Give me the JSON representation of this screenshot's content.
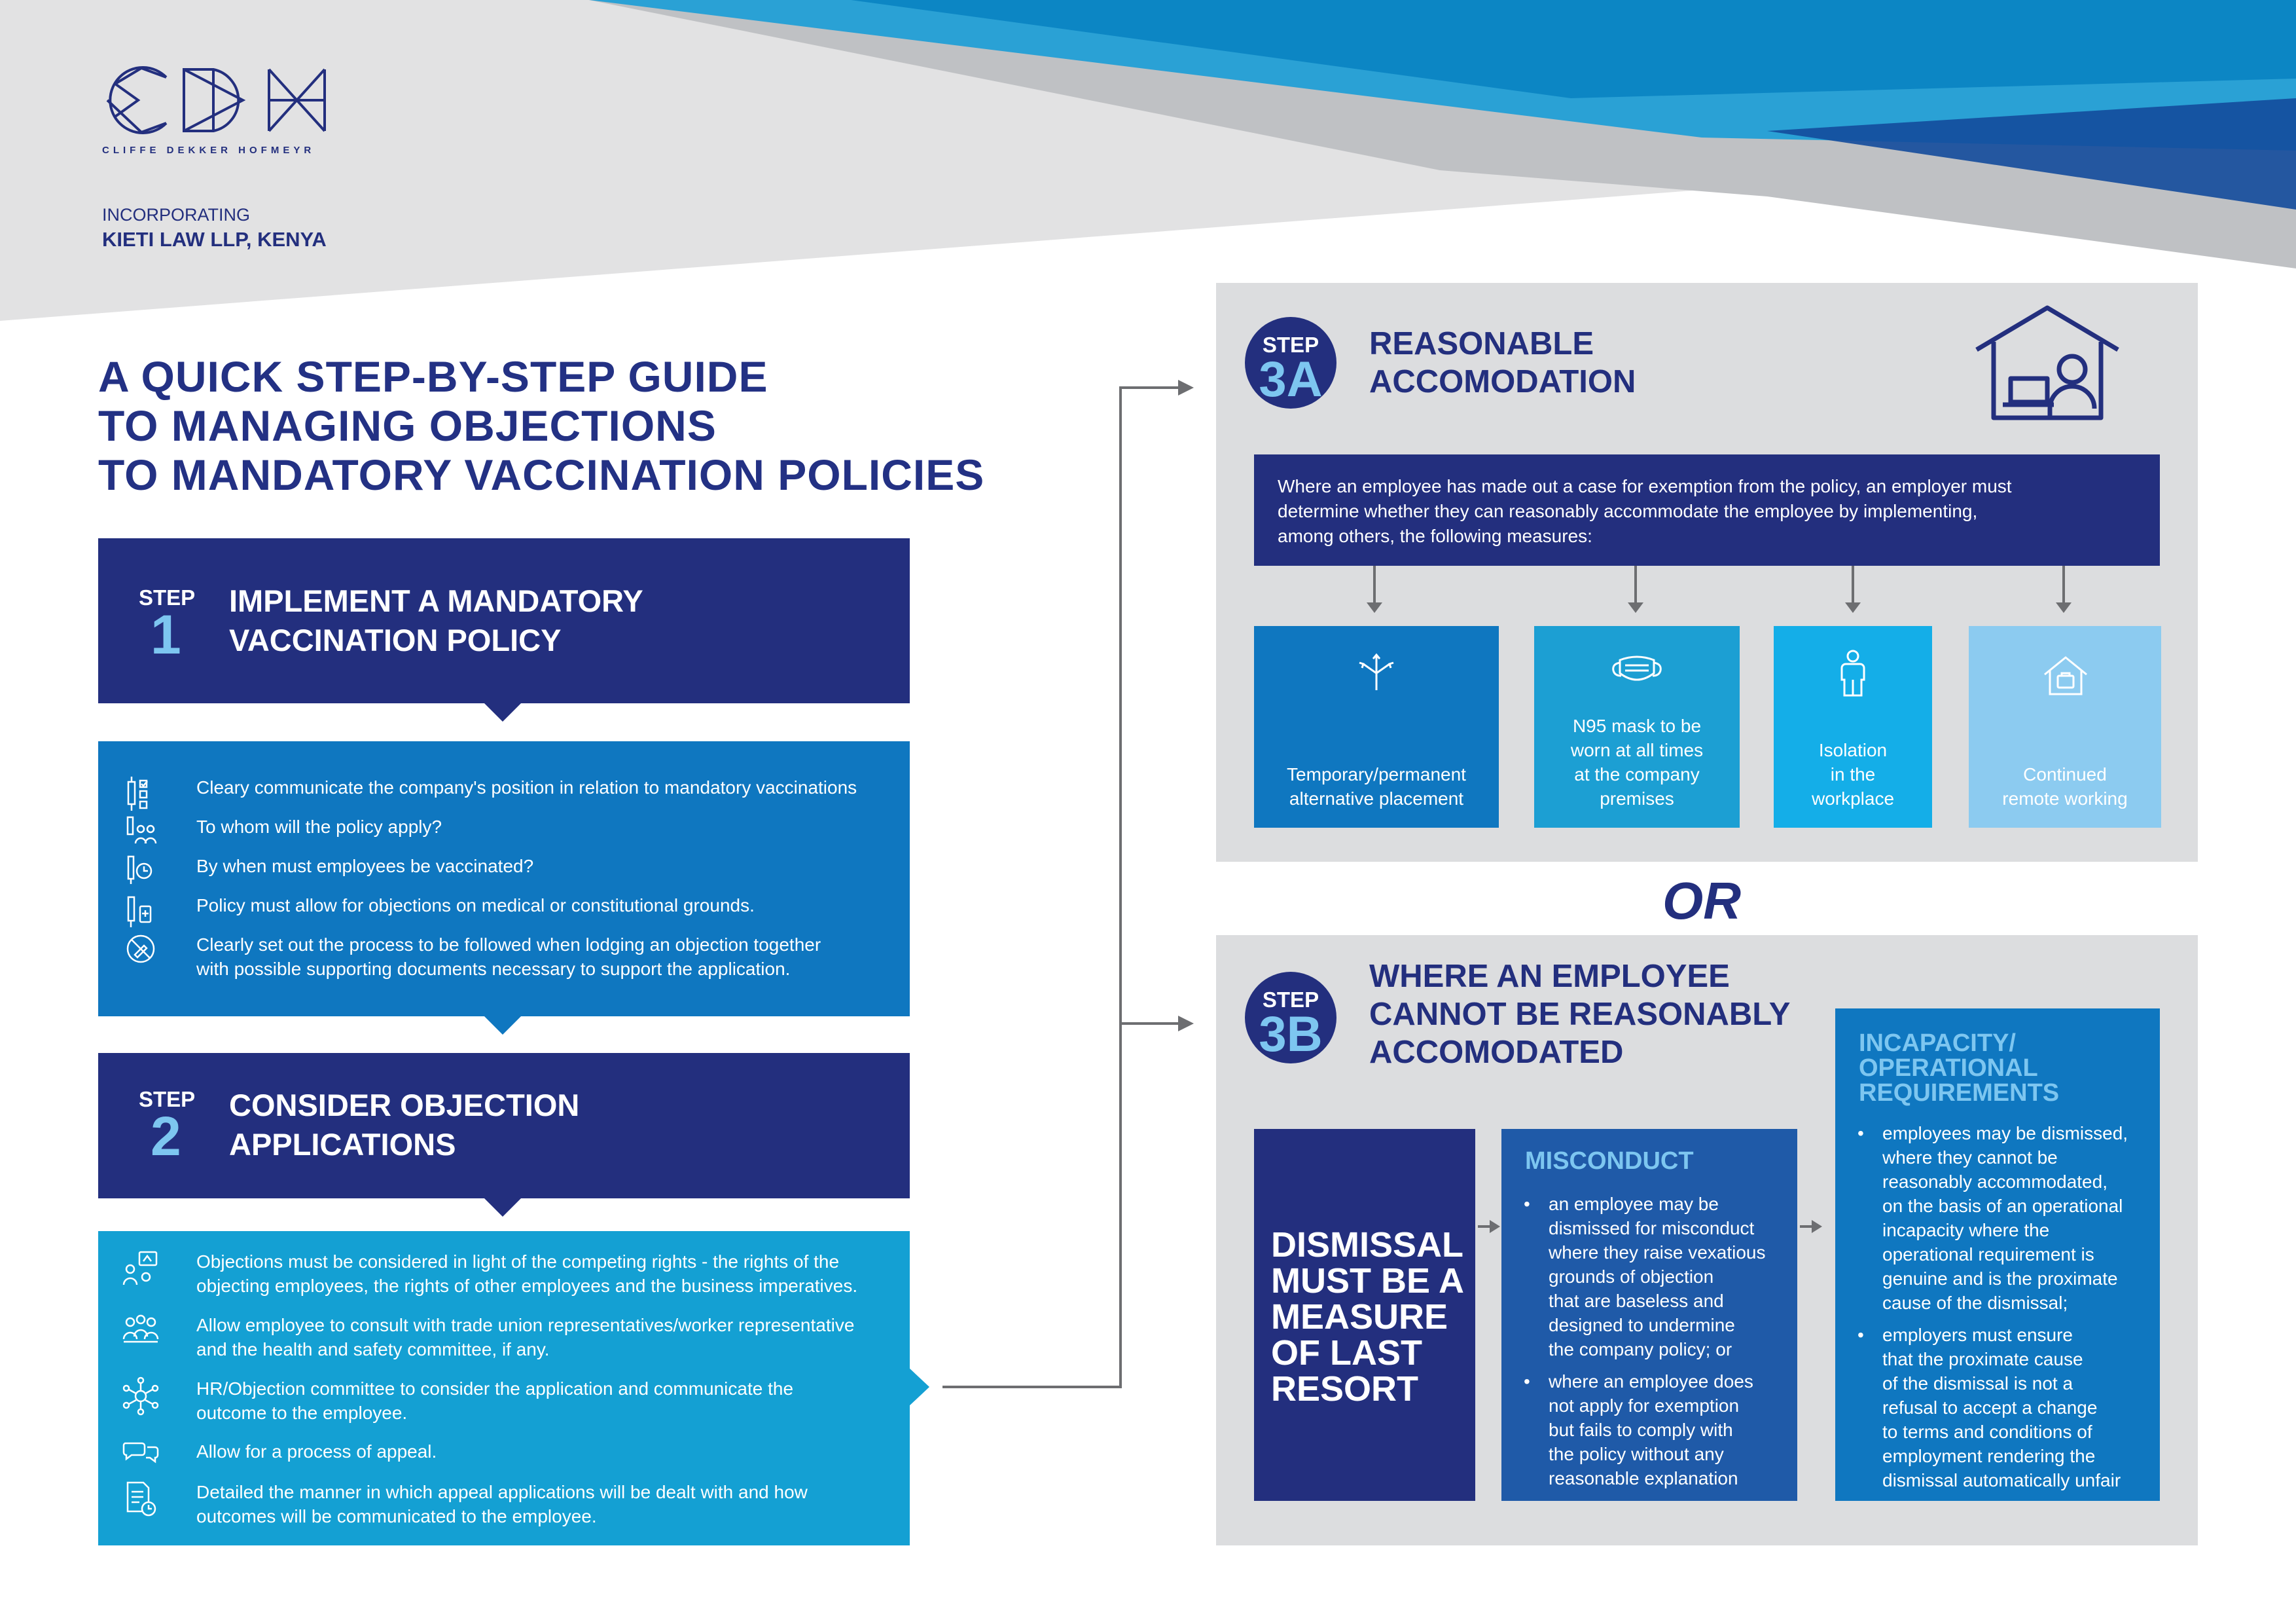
{
  "branding": {
    "logo_text": "CDH",
    "logo_subtitle": "CLIFFE DEKKER HOFMEYR",
    "incorporating": "INCORPORATING",
    "incorporating_firm": "KIETI LAW LLP, KENYA"
  },
  "title": {
    "line1": "A QUICK STEP-BY-STEP GUIDE",
    "line2": "TO MANAGING OBJECTIONS",
    "line3": "TO MANDATORY VACCINATION POLICIES"
  },
  "step1": {
    "label": "STEP",
    "number": "1",
    "title_line1": "IMPLEMENT A MANDATORY",
    "title_line2": "VACCINATION POLICY",
    "items": [
      {
        "icon": "vaccine-checklist-icon",
        "text": "Cleary communicate the company's position in relation to mandatory vaccinations"
      },
      {
        "icon": "people-vaccine-icon",
        "text": "To whom will the policy apply?"
      },
      {
        "icon": "vaccine-clock-icon",
        "text": "By when must employees be vaccinated?"
      },
      {
        "icon": "vaccine-medical-icon",
        "text": "Policy must allow for objections on medical or constitutional grounds."
      },
      {
        "icon": "no-vaccine-icon",
        "text_line1": "Clearly set out the process to be followed when lodging an objection together",
        "text_line2": "with possible supporting documents necessary to support the application."
      }
    ]
  },
  "step2": {
    "label": "STEP",
    "number": "2",
    "title_line1": "CONSIDER OBJECTION",
    "title_line2": "APPLICATIONS",
    "items": [
      {
        "icon": "rights-balance-icon",
        "text_line1": "Objections must be considered in light of the competing rights - the rights of the",
        "text_line2": "objecting employees, the rights of other employees and the business imperatives."
      },
      {
        "icon": "consult-group-icon",
        "text_line1": "Allow employee to consult with trade union representatives/worker representative",
        "text_line2": "and the health and safety committee, if any."
      },
      {
        "icon": "committee-network-icon",
        "text_line1": "HR/Objection committee to consider the application and communicate the",
        "text_line2": "outcome to the employee."
      },
      {
        "icon": "speech-bubbles-icon",
        "text": "Allow for a process of appeal."
      },
      {
        "icon": "document-clock-icon",
        "text_line1": "Detailed the manner in which appeal applications will be dealt with and how",
        "text_line2": "outcomes will be communicated to the employee."
      }
    ]
  },
  "step3a": {
    "label": "STEP",
    "number": "3A",
    "title_line1": "REASONABLE",
    "title_line2": "ACCOMODATION",
    "header_icon": "home-working-icon",
    "intro_line1": "Where an employee has made out a case for exemption from the policy, an employer must",
    "intro_line2": "determine whether they can reasonably accommodate the employee by implementing,",
    "intro_line3": "among others, the following measures:",
    "measures": [
      {
        "icon": "diverging-arrows-icon",
        "line1": "Temporary/permanent",
        "line2": "alternative placement",
        "color": "#0f77c0"
      },
      {
        "icon": "face-mask-icon",
        "line1": "N95 mask to be",
        "line2": "worn at all times",
        "line3": "at the company",
        "line4": "premises",
        "color": "#1c9fd3"
      },
      {
        "icon": "person-icon",
        "line1": "Isolation",
        "line2": "in the",
        "line3": "workplace",
        "color": "#14aee8"
      },
      {
        "icon": "remote-house-icon",
        "line1": "Continued",
        "line2": "remote working",
        "color": "#8ccbf0"
      }
    ]
  },
  "or_label": "OR",
  "step3b": {
    "label": "STEP",
    "number": "3B",
    "title_line1": "WHERE AN EMPLOYEE",
    "title_line2": "CANNOT BE REASONABLY",
    "title_line3": "ACCOMODATED",
    "dismissal_line1": "DISMISSAL",
    "dismissal_line2": "MUST BE A",
    "dismissal_line3": "MEASURE",
    "dismissal_line4": "OF LAST",
    "dismissal_line5": "RESORT",
    "misconduct": {
      "title": "MISCONDUCT",
      "bullets": [
        [
          "an employee may be",
          "dismissed for misconduct",
          "where they raise vexatious",
          "grounds of objection",
          "that are baseless and",
          "designed to undermine",
          "the company policy; or"
        ],
        [
          "where an employee does",
          "not apply for exemption",
          "but fails to comply with",
          "the policy without any",
          "reasonable explanation"
        ]
      ]
    },
    "incapacity": {
      "title_line1": "INCAPACITY/",
      "title_line2": "OPERATIONAL",
      "title_line3": "REQUIREMENTS",
      "bullets": [
        [
          "employees may be dismissed,",
          "where they cannot be",
          "reasonably accommodated,",
          "on the basis of an operational",
          "incapacity where the",
          "operational requirement is",
          "genuine and is the proximate",
          "cause of the dismissal;"
        ],
        [
          "employers must ensure",
          "that the proximate cause",
          "of the dismissal is not a",
          "refusal to accept a change",
          "to terms and conditions of",
          "employment rendering the",
          "dismissal automatically unfair"
        ]
      ]
    }
  },
  "colors": {
    "navy": "#232f7e",
    "step1_list": "#0f77c0",
    "step2_list": "#14a0d3",
    "panel_grey": "#dcdddf",
    "light_blue": "#7dc6f0"
  }
}
